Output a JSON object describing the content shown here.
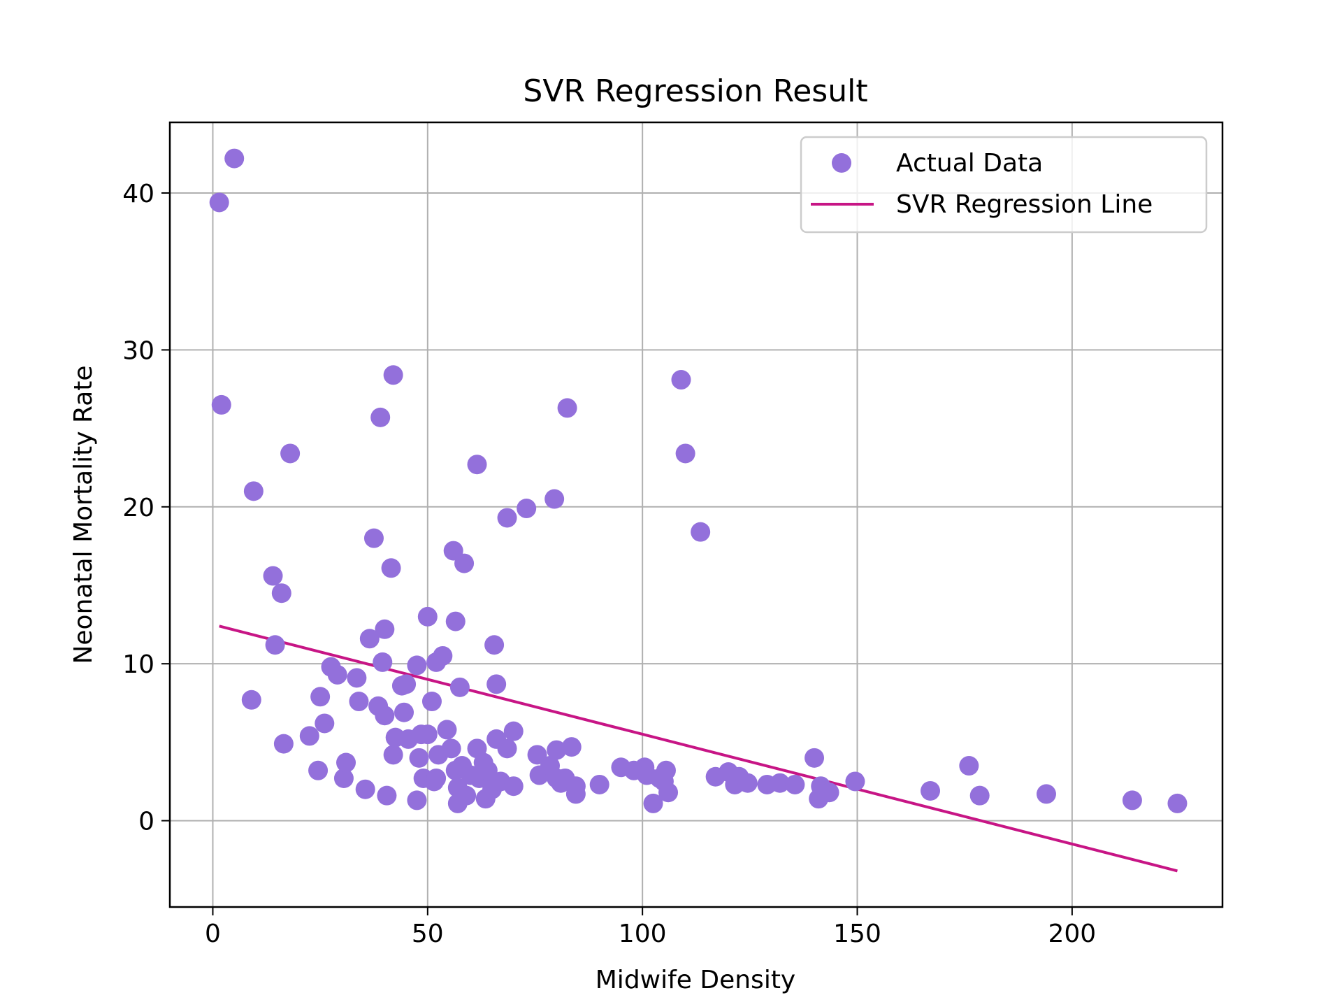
{
  "chart_data": {
    "type": "scatter",
    "title": "SVR Regression Result",
    "xlabel": "Midwife Density",
    "ylabel": "Neonatal Mortality Rate",
    "xlim": [
      -10,
      235
    ],
    "ylim": [
      -5.5,
      44.5
    ],
    "xticks": [
      0,
      50,
      100,
      150,
      200
    ],
    "yticks": [
      0,
      10,
      20,
      30,
      40
    ],
    "grid": true,
    "legend_position": "top-right",
    "colors": {
      "points": "#9370DB",
      "line": "#C71585"
    },
    "series": [
      {
        "name": "Actual Data",
        "kind": "scatter",
        "points": [
          [
            1.5,
            39.4
          ],
          [
            5,
            42.2
          ],
          [
            2,
            26.5
          ],
          [
            9.5,
            21
          ],
          [
            9,
            7.7
          ],
          [
            18,
            23.4
          ],
          [
            14,
            15.6
          ],
          [
            16,
            14.5
          ],
          [
            14.5,
            11.2
          ],
          [
            16.5,
            4.9
          ],
          [
            22.5,
            5.4
          ],
          [
            24.5,
            3.2
          ],
          [
            25,
            7.9
          ],
          [
            26,
            6.2
          ],
          [
            27.5,
            9.8
          ],
          [
            29,
            9.3
          ],
          [
            30.5,
            2.7
          ],
          [
            31,
            3.7
          ],
          [
            33.5,
            9.1
          ],
          [
            34,
            7.6
          ],
          [
            35.5,
            2
          ],
          [
            36.5,
            11.6
          ],
          [
            37.5,
            18
          ],
          [
            38.5,
            7.3
          ],
          [
            39,
            25.7
          ],
          [
            39.5,
            10.1
          ],
          [
            40,
            12.2
          ],
          [
            40,
            6.7
          ],
          [
            40.5,
            1.6
          ],
          [
            41.5,
            16.1
          ],
          [
            42,
            28.4
          ],
          [
            42,
            4.2
          ],
          [
            42.5,
            5.3
          ],
          [
            44,
            8.6
          ],
          [
            44.5,
            6.9
          ],
          [
            45,
            8.7
          ],
          [
            45.5,
            5.2
          ],
          [
            47.5,
            1.3
          ],
          [
            47.5,
            9.9
          ],
          [
            48,
            4
          ],
          [
            48.5,
            5.5
          ],
          [
            49,
            2.7
          ],
          [
            50,
            13
          ],
          [
            50,
            5.5
          ],
          [
            51,
            7.6
          ],
          [
            51.5,
            2.5
          ],
          [
            52,
            10.1
          ],
          [
            52,
            2.7
          ],
          [
            52.5,
            4.2
          ],
          [
            53.5,
            10.5
          ],
          [
            54.5,
            5.8
          ],
          [
            55.5,
            4.6
          ],
          [
            56,
            17.2
          ],
          [
            56.5,
            12.7
          ],
          [
            56.5,
            3.2
          ],
          [
            57,
            2.1
          ],
          [
            57,
            1.1
          ],
          [
            57.5,
            8.5
          ],
          [
            58,
            3.5
          ],
          [
            58.5,
            16.4
          ],
          [
            59,
            1.6
          ],
          [
            60,
            2.9
          ],
          [
            61.5,
            22.7
          ],
          [
            61.5,
            4.6
          ],
          [
            62,
            2.7
          ],
          [
            63,
            3.7
          ],
          [
            63.5,
            1.4
          ],
          [
            64,
            3.2
          ],
          [
            65,
            2
          ],
          [
            65.5,
            11.2
          ],
          [
            66,
            5.2
          ],
          [
            66,
            8.7
          ],
          [
            67,
            2.5
          ],
          [
            68.5,
            19.3
          ],
          [
            68.5,
            4.6
          ],
          [
            70,
            5.7
          ],
          [
            70,
            2.2
          ],
          [
            73,
            19.9
          ],
          [
            75.5,
            4.2
          ],
          [
            76,
            2.9
          ],
          [
            78.5,
            3.5
          ],
          [
            79.5,
            20.5
          ],
          [
            80,
            2.7
          ],
          [
            80,
            4.5
          ],
          [
            81,
            2.4
          ],
          [
            82,
            2.7
          ],
          [
            82.5,
            26.3
          ],
          [
            83.5,
            4.7
          ],
          [
            84.5,
            1.7
          ],
          [
            84.5,
            2.2
          ],
          [
            90,
            2.3
          ],
          [
            95,
            3.4
          ],
          [
            98,
            3.2
          ],
          [
            100.5,
            3.4
          ],
          [
            101,
            2.9
          ],
          [
            102.5,
            1.1
          ],
          [
            104,
            2.7
          ],
          [
            105,
            2.5
          ],
          [
            105.5,
            3.2
          ],
          [
            106,
            1.8
          ],
          [
            109,
            28.1
          ],
          [
            110,
            23.4
          ],
          [
            113.5,
            18.4
          ],
          [
            117,
            2.8
          ],
          [
            120,
            3.1
          ],
          [
            121.5,
            2.3
          ],
          [
            122.5,
            2.8
          ],
          [
            124.5,
            2.4
          ],
          [
            129,
            2.3
          ],
          [
            132,
            2.4
          ],
          [
            135.5,
            2.3
          ],
          [
            140,
            4
          ],
          [
            141,
            1.4
          ],
          [
            141.5,
            2.2
          ],
          [
            142.5,
            1.9
          ],
          [
            143.5,
            1.8
          ],
          [
            149.5,
            2.5
          ],
          [
            167,
            1.9
          ],
          [
            176,
            3.5
          ],
          [
            178.5,
            1.6
          ],
          [
            194,
            1.7
          ],
          [
            214,
            1.3
          ],
          [
            224.5,
            1.1
          ]
        ]
      },
      {
        "name": "SVR Regression Line",
        "kind": "line",
        "points": [
          [
            1.5,
            12.4
          ],
          [
            224.5,
            -3.2
          ]
        ]
      }
    ]
  }
}
